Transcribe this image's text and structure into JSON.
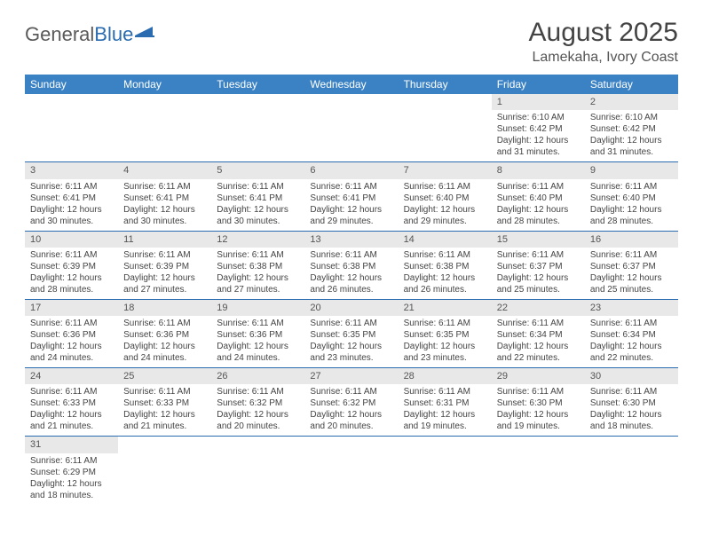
{
  "logo": {
    "text1": "General",
    "text2": "Blue"
  },
  "title": "August 2025",
  "location": "Lamekaha, Ivory Coast",
  "weekdays": [
    "Sunday",
    "Monday",
    "Tuesday",
    "Wednesday",
    "Thursday",
    "Friday",
    "Saturday"
  ],
  "colors": {
    "header_bg": "#3b82c4",
    "header_text": "#ffffff",
    "daynum_bg": "#e8e8e8",
    "border": "#2b6cb0"
  },
  "weeks": [
    {
      "nums": [
        "",
        "",
        "",
        "",
        "",
        "1",
        "2"
      ],
      "cells": [
        null,
        null,
        null,
        null,
        null,
        {
          "sunrise": "Sunrise: 6:10 AM",
          "sunset": "Sunset: 6:42 PM",
          "daylight1": "Daylight: 12 hours",
          "daylight2": "and 31 minutes."
        },
        {
          "sunrise": "Sunrise: 6:10 AM",
          "sunset": "Sunset: 6:42 PM",
          "daylight1": "Daylight: 12 hours",
          "daylight2": "and 31 minutes."
        }
      ]
    },
    {
      "nums": [
        "3",
        "4",
        "5",
        "6",
        "7",
        "8",
        "9"
      ],
      "cells": [
        {
          "sunrise": "Sunrise: 6:11 AM",
          "sunset": "Sunset: 6:41 PM",
          "daylight1": "Daylight: 12 hours",
          "daylight2": "and 30 minutes."
        },
        {
          "sunrise": "Sunrise: 6:11 AM",
          "sunset": "Sunset: 6:41 PM",
          "daylight1": "Daylight: 12 hours",
          "daylight2": "and 30 minutes."
        },
        {
          "sunrise": "Sunrise: 6:11 AM",
          "sunset": "Sunset: 6:41 PM",
          "daylight1": "Daylight: 12 hours",
          "daylight2": "and 30 minutes."
        },
        {
          "sunrise": "Sunrise: 6:11 AM",
          "sunset": "Sunset: 6:41 PM",
          "daylight1": "Daylight: 12 hours",
          "daylight2": "and 29 minutes."
        },
        {
          "sunrise": "Sunrise: 6:11 AM",
          "sunset": "Sunset: 6:40 PM",
          "daylight1": "Daylight: 12 hours",
          "daylight2": "and 29 minutes."
        },
        {
          "sunrise": "Sunrise: 6:11 AM",
          "sunset": "Sunset: 6:40 PM",
          "daylight1": "Daylight: 12 hours",
          "daylight2": "and 28 minutes."
        },
        {
          "sunrise": "Sunrise: 6:11 AM",
          "sunset": "Sunset: 6:40 PM",
          "daylight1": "Daylight: 12 hours",
          "daylight2": "and 28 minutes."
        }
      ]
    },
    {
      "nums": [
        "10",
        "11",
        "12",
        "13",
        "14",
        "15",
        "16"
      ],
      "cells": [
        {
          "sunrise": "Sunrise: 6:11 AM",
          "sunset": "Sunset: 6:39 PM",
          "daylight1": "Daylight: 12 hours",
          "daylight2": "and 28 minutes."
        },
        {
          "sunrise": "Sunrise: 6:11 AM",
          "sunset": "Sunset: 6:39 PM",
          "daylight1": "Daylight: 12 hours",
          "daylight2": "and 27 minutes."
        },
        {
          "sunrise": "Sunrise: 6:11 AM",
          "sunset": "Sunset: 6:38 PM",
          "daylight1": "Daylight: 12 hours",
          "daylight2": "and 27 minutes."
        },
        {
          "sunrise": "Sunrise: 6:11 AM",
          "sunset": "Sunset: 6:38 PM",
          "daylight1": "Daylight: 12 hours",
          "daylight2": "and 26 minutes."
        },
        {
          "sunrise": "Sunrise: 6:11 AM",
          "sunset": "Sunset: 6:38 PM",
          "daylight1": "Daylight: 12 hours",
          "daylight2": "and 26 minutes."
        },
        {
          "sunrise": "Sunrise: 6:11 AM",
          "sunset": "Sunset: 6:37 PM",
          "daylight1": "Daylight: 12 hours",
          "daylight2": "and 25 minutes."
        },
        {
          "sunrise": "Sunrise: 6:11 AM",
          "sunset": "Sunset: 6:37 PM",
          "daylight1": "Daylight: 12 hours",
          "daylight2": "and 25 minutes."
        }
      ]
    },
    {
      "nums": [
        "17",
        "18",
        "19",
        "20",
        "21",
        "22",
        "23"
      ],
      "cells": [
        {
          "sunrise": "Sunrise: 6:11 AM",
          "sunset": "Sunset: 6:36 PM",
          "daylight1": "Daylight: 12 hours",
          "daylight2": "and 24 minutes."
        },
        {
          "sunrise": "Sunrise: 6:11 AM",
          "sunset": "Sunset: 6:36 PM",
          "daylight1": "Daylight: 12 hours",
          "daylight2": "and 24 minutes."
        },
        {
          "sunrise": "Sunrise: 6:11 AM",
          "sunset": "Sunset: 6:36 PM",
          "daylight1": "Daylight: 12 hours",
          "daylight2": "and 24 minutes."
        },
        {
          "sunrise": "Sunrise: 6:11 AM",
          "sunset": "Sunset: 6:35 PM",
          "daylight1": "Daylight: 12 hours",
          "daylight2": "and 23 minutes."
        },
        {
          "sunrise": "Sunrise: 6:11 AM",
          "sunset": "Sunset: 6:35 PM",
          "daylight1": "Daylight: 12 hours",
          "daylight2": "and 23 minutes."
        },
        {
          "sunrise": "Sunrise: 6:11 AM",
          "sunset": "Sunset: 6:34 PM",
          "daylight1": "Daylight: 12 hours",
          "daylight2": "and 22 minutes."
        },
        {
          "sunrise": "Sunrise: 6:11 AM",
          "sunset": "Sunset: 6:34 PM",
          "daylight1": "Daylight: 12 hours",
          "daylight2": "and 22 minutes."
        }
      ]
    },
    {
      "nums": [
        "24",
        "25",
        "26",
        "27",
        "28",
        "29",
        "30"
      ],
      "cells": [
        {
          "sunrise": "Sunrise: 6:11 AM",
          "sunset": "Sunset: 6:33 PM",
          "daylight1": "Daylight: 12 hours",
          "daylight2": "and 21 minutes."
        },
        {
          "sunrise": "Sunrise: 6:11 AM",
          "sunset": "Sunset: 6:33 PM",
          "daylight1": "Daylight: 12 hours",
          "daylight2": "and 21 minutes."
        },
        {
          "sunrise": "Sunrise: 6:11 AM",
          "sunset": "Sunset: 6:32 PM",
          "daylight1": "Daylight: 12 hours",
          "daylight2": "and 20 minutes."
        },
        {
          "sunrise": "Sunrise: 6:11 AM",
          "sunset": "Sunset: 6:32 PM",
          "daylight1": "Daylight: 12 hours",
          "daylight2": "and 20 minutes."
        },
        {
          "sunrise": "Sunrise: 6:11 AM",
          "sunset": "Sunset: 6:31 PM",
          "daylight1": "Daylight: 12 hours",
          "daylight2": "and 19 minutes."
        },
        {
          "sunrise": "Sunrise: 6:11 AM",
          "sunset": "Sunset: 6:30 PM",
          "daylight1": "Daylight: 12 hours",
          "daylight2": "and 19 minutes."
        },
        {
          "sunrise": "Sunrise: 6:11 AM",
          "sunset": "Sunset: 6:30 PM",
          "daylight1": "Daylight: 12 hours",
          "daylight2": "and 18 minutes."
        }
      ]
    },
    {
      "nums": [
        "31",
        "",
        "",
        "",
        "",
        "",
        ""
      ],
      "cells": [
        {
          "sunrise": "Sunrise: 6:11 AM",
          "sunset": "Sunset: 6:29 PM",
          "daylight1": "Daylight: 12 hours",
          "daylight2": "and 18 minutes."
        },
        null,
        null,
        null,
        null,
        null,
        null
      ]
    }
  ]
}
